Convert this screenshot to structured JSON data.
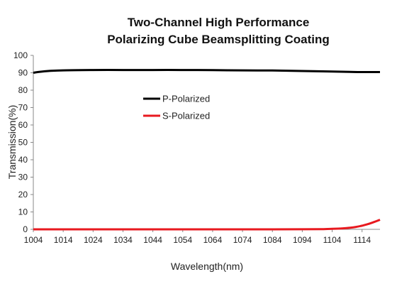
{
  "chart_data": {
    "type": "line",
    "title_lines": [
      "Two-Channel High Performance",
      "Polarizing Cube Beamsplitting Coating"
    ],
    "xlabel": "Wavelength(nm)",
    "ylabel": "Transmission(%)",
    "xlim": [
      1004,
      1120
    ],
    "ylim": [
      0,
      100
    ],
    "x_ticks": [
      1004,
      1014,
      1024,
      1034,
      1044,
      1054,
      1064,
      1074,
      1084,
      1094,
      1104,
      1114
    ],
    "y_ticks": [
      0,
      10,
      20,
      30,
      40,
      50,
      60,
      70,
      80,
      90,
      100
    ],
    "grid": false,
    "legend_position": "upper-left-inside",
    "series": [
      {
        "name": "P-Polarized",
        "color": "#000000",
        "x": [
          1004,
          1006,
          1009,
          1014,
          1024,
          1034,
          1044,
          1054,
          1064,
          1074,
          1084,
          1094,
          1104,
          1110,
          1114,
          1117,
          1120
        ],
        "values": [
          90.0,
          90.5,
          91.0,
          91.4,
          91.6,
          91.6,
          91.6,
          91.6,
          91.5,
          91.4,
          91.3,
          91.0,
          90.7,
          90.5,
          90.4,
          90.4,
          90.4
        ]
      },
      {
        "name": "S-Polarized",
        "color": "#e8191f",
        "x": [
          1004,
          1024,
          1044,
          1064,
          1084,
          1094,
          1100,
          1104,
          1107,
          1110,
          1112,
          1114,
          1116,
          1118,
          1120
        ],
        "values": [
          0.0,
          0.0,
          0.0,
          0.0,
          0.0,
          0.05,
          0.1,
          0.3,
          0.5,
          0.9,
          1.4,
          2.1,
          3.0,
          4.2,
          5.5
        ]
      }
    ]
  }
}
